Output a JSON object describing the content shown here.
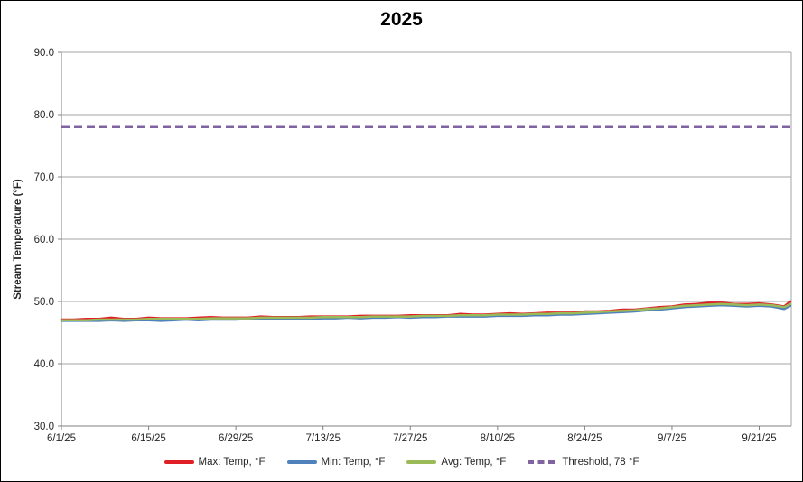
{
  "header": {
    "title": "2025"
  },
  "chart_data": {
    "type": "line",
    "title": "2025",
    "xlabel": "",
    "ylabel": "Stream Temperature (°F)",
    "ylim": [
      30.0,
      90.0
    ],
    "y_tick_step": 10,
    "grid": true,
    "legend_position": "bottom",
    "colors": {
      "gridline": "#A6A6A6",
      "axis": "#808080",
      "tick_text": "#262626",
      "title_text": "#000000",
      "background": "#FFFFFF",
      "border": "#000000"
    },
    "y_ticks": [
      {
        "label": "90.0",
        "value": 90
      },
      {
        "label": "80.0",
        "value": 80
      },
      {
        "label": "70.0",
        "value": 70
      },
      {
        "label": "60.0",
        "value": 60
      },
      {
        "label": "50.0",
        "value": 50
      },
      {
        "label": "40.0",
        "value": 40
      },
      {
        "label": "30.0",
        "value": 30
      }
    ],
    "x_total_days": 117,
    "x_ticks": [
      {
        "label": "6/1/25",
        "day": 0
      },
      {
        "label": "6/15/25",
        "day": 14
      },
      {
        "label": "6/29/25",
        "day": 28
      },
      {
        "label": "7/13/25",
        "day": 42
      },
      {
        "label": "7/27/25",
        "day": 56
      },
      {
        "label": "8/10/25",
        "day": 70
      },
      {
        "label": "8/24/25",
        "day": 84
      },
      {
        "label": "9/7/25",
        "day": 98
      },
      {
        "label": "9/21/25",
        "day": 112
      }
    ],
    "x_dates": [
      "6/1/25",
      "6/3/25",
      "6/5/25",
      "6/7/25",
      "6/9/25",
      "6/11/25",
      "6/13/25",
      "6/15/25",
      "6/17/25",
      "6/19/25",
      "6/21/25",
      "6/23/25",
      "6/25/25",
      "6/27/25",
      "6/29/25",
      "7/1/25",
      "7/3/25",
      "7/5/25",
      "7/7/25",
      "7/9/25",
      "7/11/25",
      "7/13/25",
      "7/15/25",
      "7/17/25",
      "7/19/25",
      "7/21/25",
      "7/23/25",
      "7/25/25",
      "7/27/25",
      "7/29/25",
      "7/31/25",
      "8/2/25",
      "8/4/25",
      "8/6/25",
      "8/8/25",
      "8/10/25",
      "8/12/25",
      "8/14/25",
      "8/16/25",
      "8/18/25",
      "8/20/25",
      "8/22/25",
      "8/24/25",
      "8/26/25",
      "8/28/25",
      "8/30/25",
      "9/1/25",
      "9/3/25",
      "9/5/25",
      "9/7/25",
      "9/9/25",
      "9/11/25",
      "9/13/25",
      "9/15/25",
      "9/17/25",
      "9/19/25",
      "9/21/25",
      "9/23/25",
      "9/25/25",
      "9/26/25"
    ],
    "x_days": [
      0,
      2,
      4,
      6,
      8,
      10,
      12,
      14,
      16,
      18,
      20,
      22,
      24,
      26,
      28,
      30,
      32,
      34,
      36,
      38,
      40,
      42,
      44,
      46,
      48,
      50,
      52,
      54,
      56,
      58,
      60,
      62,
      64,
      66,
      68,
      70,
      72,
      74,
      76,
      78,
      80,
      82,
      84,
      86,
      88,
      90,
      92,
      94,
      96,
      98,
      100,
      102,
      104,
      106,
      108,
      110,
      112,
      114,
      116,
      117
    ],
    "series": [
      {
        "key": "max",
        "name": "Max: Temp, °F",
        "color": "#E02026",
        "style": "solid",
        "values": [
          47.1,
          47.1,
          47.2,
          47.2,
          47.4,
          47.2,
          47.2,
          47.4,
          47.3,
          47.3,
          47.3,
          47.4,
          47.5,
          47.4,
          47.4,
          47.4,
          47.6,
          47.5,
          47.5,
          47.5,
          47.6,
          47.6,
          47.6,
          47.6,
          47.7,
          47.7,
          47.7,
          47.7,
          47.8,
          47.8,
          47.8,
          47.8,
          48.0,
          47.9,
          47.9,
          48.0,
          48.1,
          48.0,
          48.1,
          48.2,
          48.2,
          48.2,
          48.4,
          48.4,
          48.5,
          48.7,
          48.7,
          48.9,
          49.1,
          49.2,
          49.5,
          49.6,
          49.8,
          49.8,
          49.6,
          49.6,
          49.7,
          49.5,
          49.2,
          50.0
        ]
      },
      {
        "key": "min",
        "name": "Min: Temp, °F",
        "color": "#4F81BD",
        "style": "solid",
        "values": [
          46.9,
          46.9,
          46.9,
          46.9,
          47.0,
          46.9,
          47.0,
          47.0,
          46.9,
          47.0,
          47.1,
          47.0,
          47.1,
          47.1,
          47.1,
          47.2,
          47.2,
          47.2,
          47.2,
          47.3,
          47.2,
          47.3,
          47.3,
          47.4,
          47.3,
          47.4,
          47.4,
          47.5,
          47.4,
          47.5,
          47.5,
          47.6,
          47.6,
          47.6,
          47.6,
          47.7,
          47.7,
          47.7,
          47.8,
          47.8,
          47.9,
          47.9,
          48.0,
          48.1,
          48.2,
          48.3,
          48.4,
          48.6,
          48.7,
          48.9,
          49.1,
          49.2,
          49.3,
          49.4,
          49.3,
          49.2,
          49.3,
          49.2,
          48.8,
          49.3
        ]
      },
      {
        "key": "avg",
        "name": "Avg: Temp, °F",
        "color": "#9BBB59",
        "style": "solid",
        "values": [
          47.0,
          47.0,
          47.0,
          47.1,
          47.1,
          47.1,
          47.1,
          47.2,
          47.2,
          47.2,
          47.2,
          47.2,
          47.3,
          47.3,
          47.3,
          47.3,
          47.4,
          47.4,
          47.4,
          47.4,
          47.4,
          47.5,
          47.5,
          47.5,
          47.5,
          47.6,
          47.6,
          47.6,
          47.6,
          47.7,
          47.7,
          47.7,
          47.8,
          47.8,
          47.8,
          47.9,
          47.9,
          47.9,
          48.0,
          48.0,
          48.1,
          48.1,
          48.2,
          48.3,
          48.4,
          48.5,
          48.6,
          48.8,
          48.9,
          49.1,
          49.3,
          49.4,
          49.5,
          49.6,
          49.5,
          49.4,
          49.5,
          49.4,
          49.1,
          49.6
        ]
      },
      {
        "key": "threshold",
        "name": "Threshold, 78 °F",
        "color": "#8064A2",
        "style": "dashed",
        "threshold_value": 78
      }
    ]
  }
}
